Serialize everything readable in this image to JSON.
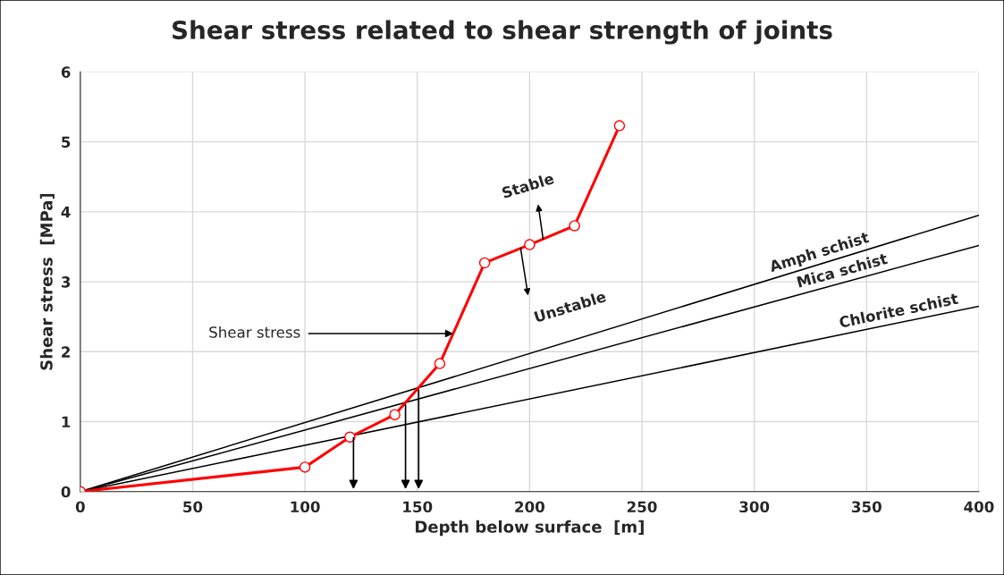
{
  "chart_data": {
    "type": "line",
    "title": "Shear stress related to shear strength of joints",
    "xlabel": "Depth below surface  [m]",
    "ylabel": "Shear stress  [MPa]",
    "series": [
      {
        "color": "#ff0000",
        "x": [
          0,
          100,
          120,
          140,
          160,
          180,
          200,
          220,
          240
        ],
        "values": [
          0,
          0.35,
          0.78,
          1.1,
          1.83,
          3.27,
          3.53,
          3.8,
          5.23
        ],
        "marker": "circle"
      },
      {
        "name": "Amph schist",
        "color": "#000000",
        "x": [
          0,
          400
        ],
        "values": [
          0,
          3.95
        ],
        "marker": "none"
      },
      {
        "name": "Mica schist",
        "color": "#000000",
        "x": [
          0,
          400
        ],
        "values": [
          0,
          3.52
        ],
        "marker": "none"
      },
      {
        "name": "Chlorite schist",
        "color": "#000000",
        "x": [
          0,
          400
        ],
        "values": [
          0,
          2.65
        ],
        "marker": "none"
      }
    ],
    "annotations": [
      {
        "text": "Shear stress",
        "x": 166,
        "y": 2.26
      },
      "Stable",
      "Unstable"
    ],
    "xlim": [
      0,
      400
    ],
    "ylim": [
      0,
      6
    ],
    "xticks": [
      0,
      50,
      100,
      150,
      200,
      250,
      300,
      350,
      400
    ],
    "yticks": [
      0,
      1,
      2,
      3,
      4,
      5,
      6
    ],
    "grid": true,
    "legend": false
  }
}
